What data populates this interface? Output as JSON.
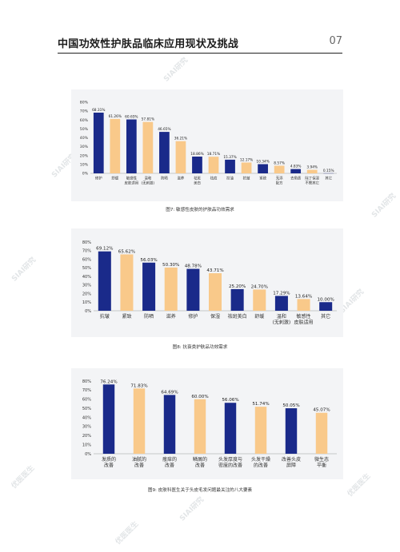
{
  "header": {
    "title": "中国功效性护肤品临床应用现状及挑战",
    "page_number": "07"
  },
  "colors": {
    "navy": "#1a2a8a",
    "orange": "#f9c98a",
    "panel": "#f3f4f6"
  },
  "watermarks": [
    "SIAI研究",
    "优医医生"
  ],
  "captions": {
    "fig7": "图7: 敏感性皮肤的护肤品功效需求",
    "fig8": "图8: 抗衰类护肤品功效需求",
    "fig9": "图9: 皮肤科医生关于头皮毛发问题最关注的八大要素"
  },
  "chart_data": [
    {
      "type": "bar",
      "yticks": [
        "0%",
        "10%",
        "20%",
        "30%",
        "40%",
        "50%",
        "60%",
        "70%",
        "80%"
      ],
      "ylim": [
        0,
        80
      ],
      "categories": [
        "修护",
        "舒缓",
        "敏感性\n皮肤适用",
        "温和\n(无刺激)",
        "防晒",
        "滋养",
        "祛斑\n美白",
        "祛痘",
        "控油",
        "抗皱",
        "紧致",
        "无添\n配方",
        "去角质",
        "除了保湿\n不需其它",
        "其它"
      ],
      "values": [
        68.31,
        61.26,
        60.65,
        57.81,
        46.65,
        36.21,
        18.86,
        18.71,
        15.37,
        12.17,
        10.34,
        8.57,
        4.83,
        3.94,
        0.15
      ],
      "labels": [
        "68.31%",
        "61.26%",
        "60.65%",
        "57.81%",
        "46.65%",
        "36.21%",
        "18.86%",
        "18.71%",
        "15.37%",
        "12.17%",
        "10.34%",
        "8.57%",
        "4.83%",
        "3.94%",
        "0.15%"
      ],
      "colors": [
        "navy",
        "orange",
        "navy",
        "orange",
        "navy",
        "orange",
        "navy",
        "orange",
        "navy",
        "orange",
        "navy",
        "orange",
        "navy",
        "orange",
        "navy"
      ]
    },
    {
      "type": "bar",
      "yticks": [
        "0%",
        "10%",
        "20%",
        "30%",
        "40%",
        "50%",
        "60%",
        "70%",
        "80%"
      ],
      "ylim": [
        0,
        80
      ],
      "categories": [
        "抗皱",
        "紧致",
        "防晒",
        "滋养",
        "修护",
        "保湿",
        "祛斑美白",
        "舒缓",
        "温和\n(无刺激)",
        "敏感性\n皮肤适用",
        "其它"
      ],
      "values": [
        69.12,
        65.62,
        56.03,
        50.3,
        48.78,
        43.71,
        25.2,
        24.7,
        17.29,
        13.64,
        10.0
      ],
      "labels": [
        "69.12%",
        "65.62%",
        "56.03%",
        "50.30%",
        "48.78%",
        "43.71%",
        "25.20%",
        "24.70%",
        "17.29%",
        "13.64%",
        "10.00%"
      ],
      "colors": [
        "navy",
        "orange",
        "navy",
        "orange",
        "navy",
        "orange",
        "navy",
        "orange",
        "navy",
        "orange",
        "navy"
      ]
    },
    {
      "type": "bar",
      "yticks": [
        "0%",
        "10%",
        "20%",
        "30%",
        "40%",
        "50%",
        "60%",
        "70%",
        "80%"
      ],
      "ylim": [
        0,
        80
      ],
      "categories": [
        "发质的\n改善",
        "油腻的\n改善",
        "瘙痒的\n改善",
        "鳞屑的\n改善",
        "头发厚度与\n密度的改善",
        "头发干燥\n的改善",
        "改善头皮\n屏障",
        "微生态\n平衡"
      ],
      "values": [
        76.24,
        71.83,
        64.69,
        60.0,
        56.06,
        51.74,
        50.05,
        45.07
      ],
      "labels": [
        "76.24%",
        "71.83%",
        "64.69%",
        "60.00%",
        "56.06%",
        "51.74%",
        "50.05%",
        "45.07%"
      ],
      "colors": [
        "navy",
        "orange",
        "navy",
        "orange",
        "navy",
        "orange",
        "navy",
        "orange"
      ]
    }
  ]
}
